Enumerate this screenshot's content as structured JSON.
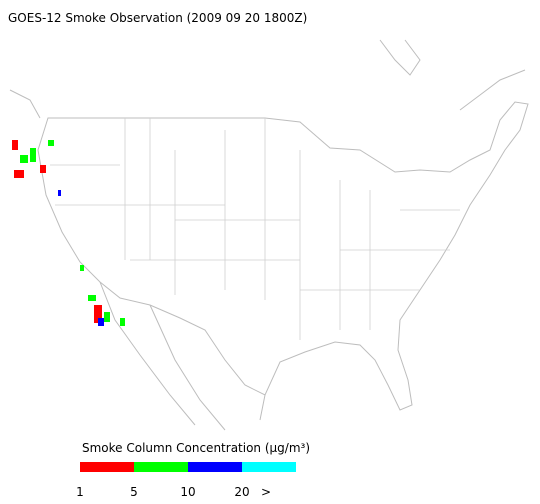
{
  "title": "GOES-12 Smoke Observation (2009 09 20  1800Z)",
  "legend": {
    "label": "Smoke Column Concentration (μg/m³)",
    "colors": [
      "#ff0000",
      "#00ff00",
      "#0000ff",
      "#00ffff"
    ],
    "ticks": [
      "1",
      "5",
      "10",
      "20",
      ">"
    ]
  }
}
